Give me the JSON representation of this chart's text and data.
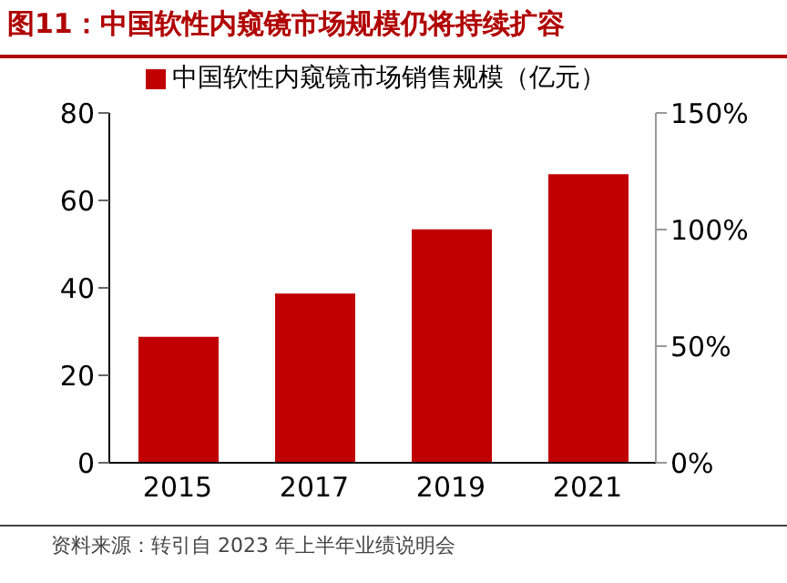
{
  "chart_data": {
    "type": "bar",
    "title": "图11：中国软性内窥镜市场规模仍将持续扩容",
    "categories": [
      "2015",
      "2017",
      "2019",
      "2021"
    ],
    "series": [
      {
        "name": "中国软性内窥镜市场销售规模（亿元）",
        "color": "#c00000",
        "values": [
          28.8,
          38.7,
          53.4,
          66.0
        ]
      }
    ],
    "ylim": [
      0,
      80
    ],
    "yticks": [
      0,
      20,
      40,
      60,
      80
    ],
    "y2lim": [
      0,
      150
    ],
    "y2ticks": [
      {
        "value": 0,
        "label": "0%"
      },
      {
        "value": 50,
        "label": "50%"
      },
      {
        "value": 100,
        "label": "100%"
      },
      {
        "value": 150,
        "label": "150%"
      }
    ],
    "legend": "top",
    "annotations": [
      "资料来源：转引自 2023 年上半年业绩说明会"
    ]
  }
}
